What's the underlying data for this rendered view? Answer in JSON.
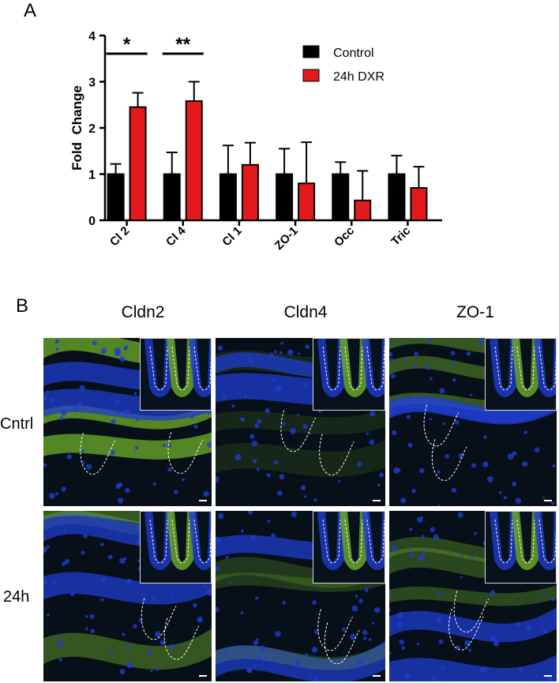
{
  "panels": {
    "a": "A",
    "b": "B"
  },
  "chart_data": {
    "type": "bar",
    "categories": [
      "Cl 2",
      "Cl 4",
      "Cl 1",
      "ZO-1",
      "Occ",
      "Tric"
    ],
    "ylabel": "Fold  Change",
    "xlabel": "",
    "ylim": [
      0,
      4
    ],
    "yticks": [
      "0",
      "1",
      "2",
      "3",
      "4"
    ],
    "series": [
      {
        "name": "Control",
        "color": "#000000",
        "values": [
          1.0,
          1.0,
          1.0,
          1.0,
          1.0,
          1.0
        ],
        "errors": [
          0.22,
          0.47,
          0.62,
          0.55,
          0.26,
          0.4
        ]
      },
      {
        "name": "24h DXR",
        "color": "#e31a1c",
        "values": [
          2.45,
          2.58,
          1.2,
          0.8,
          0.43,
          0.7
        ],
        "errors": [
          0.31,
          0.42,
          0.48,
          0.89,
          0.64,
          0.46
        ]
      }
    ],
    "significance": [
      {
        "category": "Cl 2",
        "label": "*"
      },
      {
        "category": "Cl 4",
        "label": "**"
      }
    ],
    "legend_position": "top-right"
  },
  "micrographs": {
    "columns": [
      "Cldn2",
      "Cldn4",
      "ZO-1"
    ],
    "rows": [
      "Cntrl",
      "24h"
    ],
    "colors": {
      "nuclei": "#1f3ccf",
      "stain": "#6fae2a",
      "background": "#071018"
    }
  }
}
